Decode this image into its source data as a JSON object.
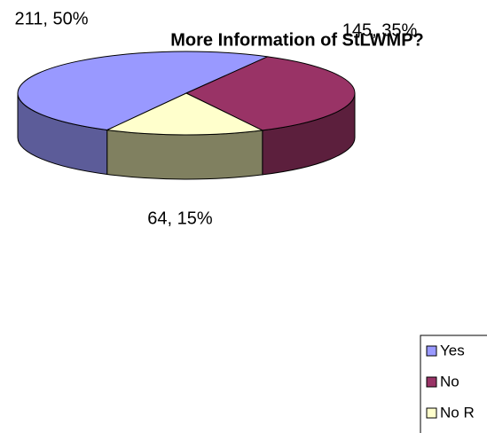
{
  "chart_data": {
    "type": "pie3d",
    "title": "More Information of StLWMP?",
    "categories": [
      "Yes",
      "No",
      "No R"
    ],
    "values": [
      211,
      145,
      64
    ],
    "value_labels": [
      "211, 50%",
      "145, 35%",
      "64, 15%"
    ],
    "colors": [
      "#9999ff",
      "#993366",
      "#ffffcc"
    ],
    "side_colors": [
      "#5c5c99",
      "#5c1f3d",
      "#808060"
    ],
    "legend": "right"
  }
}
